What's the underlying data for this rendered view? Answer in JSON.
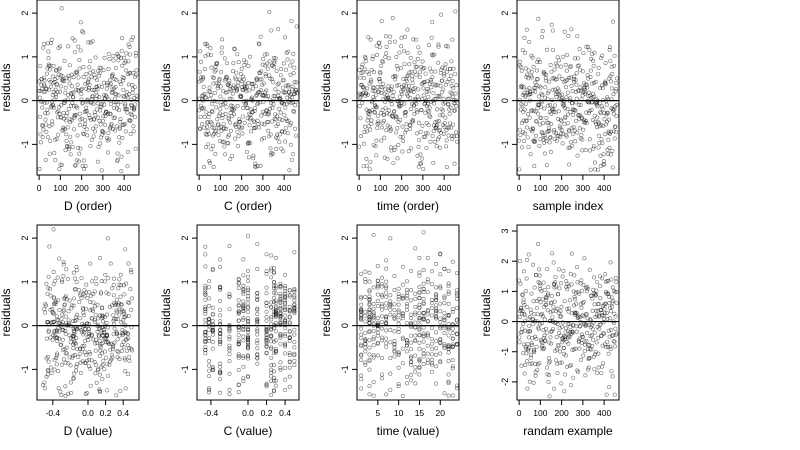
{
  "chart_data": [
    {
      "type": "scatter",
      "xlabel": "D (order)",
      "ylabel": "residuals",
      "xlim": [
        -10,
        470
      ],
      "ylim": [
        -1.7,
        2.3
      ],
      "xticks": [
        0,
        100,
        200,
        300,
        400
      ],
      "yticks": [
        -1,
        0,
        1,
        2
      ],
      "hline": 0,
      "n": 460,
      "x_kind": "index",
      "y_sd": 0.7
    },
    {
      "type": "scatter",
      "xlabel": "C (order)",
      "ylabel": "residuals",
      "xlim": [
        -10,
        470
      ],
      "ylim": [
        -1.7,
        2.3
      ],
      "xticks": [
        0,
        100,
        200,
        300,
        400
      ],
      "yticks": [
        -1,
        0,
        1,
        2
      ],
      "hline": 0,
      "n": 460,
      "x_kind": "index",
      "y_sd": 0.7
    },
    {
      "type": "scatter",
      "xlabel": "time (order)",
      "ylabel": "residuals",
      "xlim": [
        -10,
        470
      ],
      "ylim": [
        -1.7,
        2.3
      ],
      "xticks": [
        0,
        100,
        200,
        300,
        400
      ],
      "yticks": [
        -1,
        0,
        1,
        2
      ],
      "hline": 0,
      "n": 460,
      "x_kind": "index",
      "y_sd": 0.7
    },
    {
      "type": "scatter",
      "xlabel": "sample index",
      "ylabel": "residuals",
      "xlim": [
        -10,
        470
      ],
      "ylim": [
        -1.7,
        2.3
      ],
      "xticks": [
        0,
        100,
        200,
        300,
        400
      ],
      "yticks": [
        -1,
        0,
        1,
        2
      ],
      "hline": 0,
      "n": 460,
      "x_kind": "index",
      "y_sd": 0.7
    },
    {
      "type": "scatter",
      "xlabel": "D (value)",
      "ylabel": "residuals",
      "xlim": [
        -0.58,
        0.58
      ],
      "ylim": [
        -1.7,
        2.3
      ],
      "xticks": [
        -0.4,
        0.0,
        0.2,
        0.4
      ],
      "xtick_labels": [
        "-0.4",
        "0.0",
        "0.2",
        "0.4"
      ],
      "yticks": [
        -1,
        0,
        1,
        2
      ],
      "hline": 0,
      "n": 460,
      "x_kind": "continuous",
      "y_sd": 0.7
    },
    {
      "type": "scatter",
      "xlabel": "C (value)",
      "ylabel": "residuals",
      "xlim": [
        -0.55,
        0.55
      ],
      "ylim": [
        -1.7,
        2.3
      ],
      "xticks": [
        -0.4,
        0.0,
        0.2,
        0.4
      ],
      "xtick_labels": [
        "-0.4",
        "0.0",
        "0.2",
        "0.4"
      ],
      "yticks": [
        -1,
        0,
        1,
        2
      ],
      "hline": 0,
      "n": 460,
      "x_kind": "columns",
      "x_levels": [
        -0.46,
        -0.42,
        -0.38,
        -0.3,
        -0.2,
        -0.1,
        -0.05,
        0.0,
        0.1,
        0.2,
        0.25,
        0.28,
        0.3,
        0.35,
        0.4,
        0.45,
        0.5
      ],
      "y_sd": 0.7
    },
    {
      "type": "scatter",
      "xlabel": "time (value)",
      "ylabel": "residuals",
      "xlim": [
        0,
        24.5
      ],
      "ylim": [
        -1.7,
        2.3
      ],
      "xticks": [
        5,
        10,
        15,
        20
      ],
      "yticks": [
        -1,
        0,
        1,
        2
      ],
      "hline": 0,
      "n": 460,
      "x_kind": "integer",
      "x_range": [
        1,
        24
      ],
      "y_sd": 0.7
    },
    {
      "type": "scatter",
      "xlabel": "randam example",
      "ylabel": "residuals",
      "xlim": [
        -10,
        470
      ],
      "ylim": [
        -2.6,
        3.2
      ],
      "xticks": [
        0,
        100,
        200,
        300,
        400
      ],
      "yticks": [
        -2,
        -1,
        0,
        1,
        2,
        3
      ],
      "hline": 0,
      "n": 460,
      "x_kind": "index",
      "y_sd": 1.0
    }
  ]
}
